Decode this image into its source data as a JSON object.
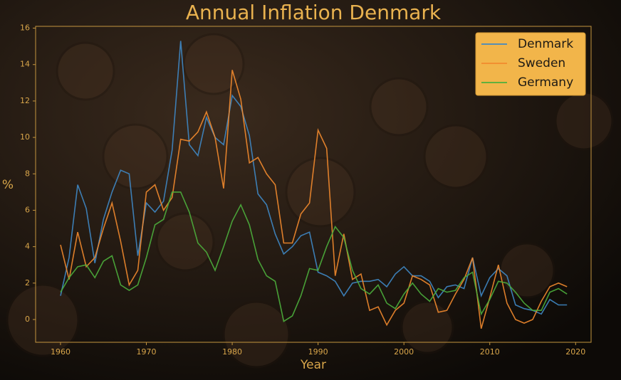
{
  "chart_data": {
    "type": "line",
    "title": "Annual Inflation Denmark",
    "x_label": "Year",
    "y_label": "%",
    "x": [
      1960,
      1961,
      1962,
      1963,
      1964,
      1965,
      1966,
      1967,
      1968,
      1969,
      1970,
      1971,
      1972,
      1973,
      1974,
      1975,
      1976,
      1977,
      1978,
      1979,
      1980,
      1981,
      1982,
      1983,
      1984,
      1985,
      1986,
      1987,
      1988,
      1989,
      1990,
      1991,
      1992,
      1993,
      1994,
      1995,
      1996,
      1997,
      1998,
      1999,
      2000,
      2001,
      2002,
      2003,
      2004,
      2005,
      2006,
      2007,
      2008,
      2009,
      2010,
      2011,
      2012,
      2013,
      2014,
      2015,
      2016,
      2017,
      2018,
      2019
    ],
    "series": [
      {
        "name": "Denmark",
        "color": "#3f88c5",
        "values": [
          1.3,
          3.4,
          7.4,
          6.1,
          3.1,
          5.5,
          7.0,
          8.2,
          8.0,
          3.5,
          6.4,
          5.9,
          6.5,
          9.3,
          15.3,
          9.6,
          9.0,
          11.1,
          10.0,
          9.6,
          12.3,
          11.7,
          10.1,
          6.9,
          6.3,
          4.7,
          3.6,
          4.0,
          4.6,
          4.8,
          2.6,
          2.4,
          2.1,
          1.3,
          2.0,
          2.1,
          2.1,
          2.2,
          1.8,
          2.5,
          2.9,
          2.4,
          2.4,
          2.1,
          1.2,
          1.8,
          1.9,
          1.7,
          3.4,
          1.3,
          2.3,
          2.8,
          2.4,
          0.8,
          0.6,
          0.5,
          0.3,
          1.1,
          0.8,
          0.8
        ]
      },
      {
        "name": "Sweden",
        "color": "#f28a2e",
        "values": [
          4.1,
          2.2,
          4.8,
          2.9,
          3.4,
          5.0,
          6.4,
          4.3,
          1.9,
          2.7,
          7.0,
          7.4,
          6.0,
          6.7,
          9.9,
          9.8,
          10.3,
          11.4,
          10.0,
          7.2,
          13.7,
          12.1,
          8.6,
          8.9,
          8.0,
          7.4,
          4.2,
          4.2,
          5.8,
          6.4,
          10.4,
          9.4,
          2.4,
          4.7,
          2.2,
          2.5,
          0.5,
          0.7,
          -0.3,
          0.5,
          0.9,
          2.4,
          2.2,
          1.9,
          0.4,
          0.5,
          1.4,
          2.2,
          3.4,
          -0.5,
          1.2,
          3.0,
          0.9,
          0.0,
          -0.2,
          0.0,
          1.0,
          1.8,
          2.0,
          1.8
        ]
      },
      {
        "name": "Germany",
        "color": "#4caf3c",
        "values": [
          1.5,
          2.3,
          2.9,
          3.0,
          2.3,
          3.2,
          3.5,
          1.9,
          1.6,
          1.9,
          3.4,
          5.2,
          5.5,
          7.0,
          7.0,
          5.9,
          4.2,
          3.7,
          2.7,
          4.0,
          5.4,
          6.3,
          5.2,
          3.3,
          2.4,
          2.1,
          -0.1,
          0.2,
          1.3,
          2.8,
          2.7,
          4.0,
          5.1,
          4.5,
          2.7,
          1.7,
          1.4,
          1.9,
          0.9,
          0.6,
          1.4,
          2.0,
          1.4,
          1.0,
          1.7,
          1.5,
          1.6,
          2.3,
          2.6,
          0.3,
          1.1,
          2.1,
          2.0,
          1.5,
          0.9,
          0.5,
          0.5,
          1.5,
          1.7,
          1.4
        ]
      }
    ],
    "xlim": [
      1957.1,
      2021.8
    ],
    "xticks": [
      1960,
      1970,
      1980,
      1990,
      2000,
      2010,
      2020
    ],
    "ylim": [
      -1.25,
      16.1
    ],
    "yticks": [
      0,
      2,
      4,
      6,
      8,
      10,
      12,
      14,
      16
    ],
    "grid": false,
    "legend": "upper right"
  }
}
